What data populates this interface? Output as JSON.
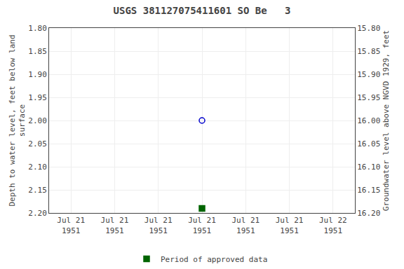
{
  "chart_data": {
    "type": "scatter",
    "title": "USGS 381127075411601 SO Be   3",
    "ylabel": "Depth to water level, feet below land\nsurface",
    "y2label": "Groundwater level above NGVD 1929, feet",
    "categories": [
      "Jul 21\n1951",
      "Jul 21\n1951",
      "Jul 21\n1951",
      "Jul 21\n1951",
      "Jul 21\n1951",
      "Jul 21\n1951",
      "Jul 22\n1951"
    ],
    "series": [
      {
        "color": "#0000cc",
        "marker": "circle-open",
        "values": [
          null,
          null,
          null,
          2.0,
          null,
          null,
          null
        ]
      },
      {
        "name": "Period of approved data",
        "color": "#006400",
        "marker": "square",
        "values": [
          null,
          null,
          null,
          2.19,
          null,
          null,
          null
        ]
      }
    ],
    "ylim": [
      2.2,
      1.8
    ],
    "yticks": [
      {
        "value": 1.8,
        "label": "1.80"
      },
      1.85,
      {
        "value": 1.9,
        "label": "1.90"
      },
      1.95,
      {
        "value": 2.0,
        "label": "2.00"
      },
      2.05,
      {
        "value": 2.1,
        "label": "2.10"
      },
      2.15,
      {
        "value": 2.2,
        "label": "2.20"
      }
    ],
    "y2lim": [
      16.2,
      15.8
    ],
    "y2ticks": [
      {
        "value": 16.2,
        "label": "16.20"
      },
      16.15,
      {
        "value": 16.1,
        "label": "16.10"
      },
      16.05,
      {
        "value": 16.0,
        "label": "16.00"
      },
      15.95,
      {
        "value": 15.9,
        "label": "15.90"
      },
      15.85,
      {
        "value": 15.8,
        "label": "15.80"
      }
    ],
    "grid": true,
    "legend": "bottom"
  }
}
